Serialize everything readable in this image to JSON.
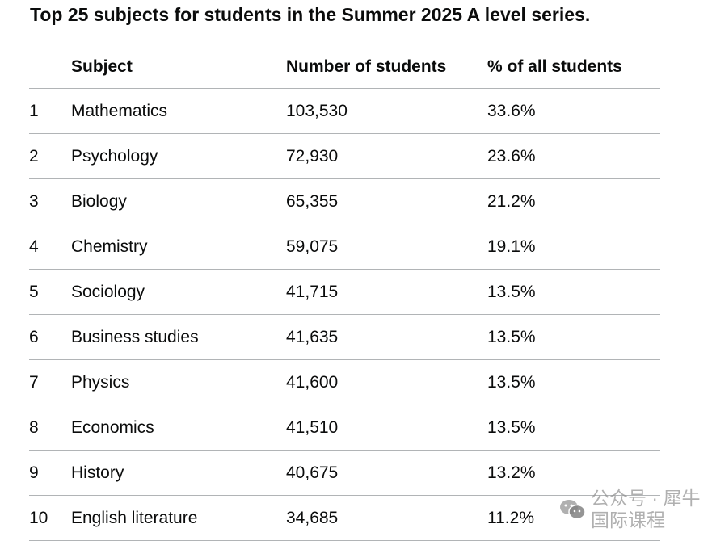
{
  "title": "Top 25 subjects for students in the Summer 2025 A level series.",
  "table": {
    "headers": [
      "",
      "Subject",
      "Number of students",
      "% of all students"
    ],
    "rows": [
      [
        "1",
        "Mathematics",
        "103,530",
        "33.6%"
      ],
      [
        "2",
        "Psychology",
        "72,930",
        "23.6%"
      ],
      [
        "3",
        "Biology",
        "65,355",
        "21.2%"
      ],
      [
        "4",
        "Chemistry",
        "59,075",
        "19.1%"
      ],
      [
        "5",
        "Sociology",
        "41,715",
        "13.5%"
      ],
      [
        "6",
        "Business studies",
        "41,635",
        "13.5%"
      ],
      [
        "7",
        "Physics",
        "41,600",
        "13.5%"
      ],
      [
        "8",
        "Economics",
        "41,510",
        "13.5%"
      ],
      [
        "9",
        "History",
        "40,675",
        "13.2%"
      ],
      [
        "10",
        "English literature",
        "34,685",
        "11.2%"
      ]
    ]
  },
  "watermark": {
    "icon": "wechat-icon",
    "text": "公众号 · 犀牛国际课程"
  }
}
